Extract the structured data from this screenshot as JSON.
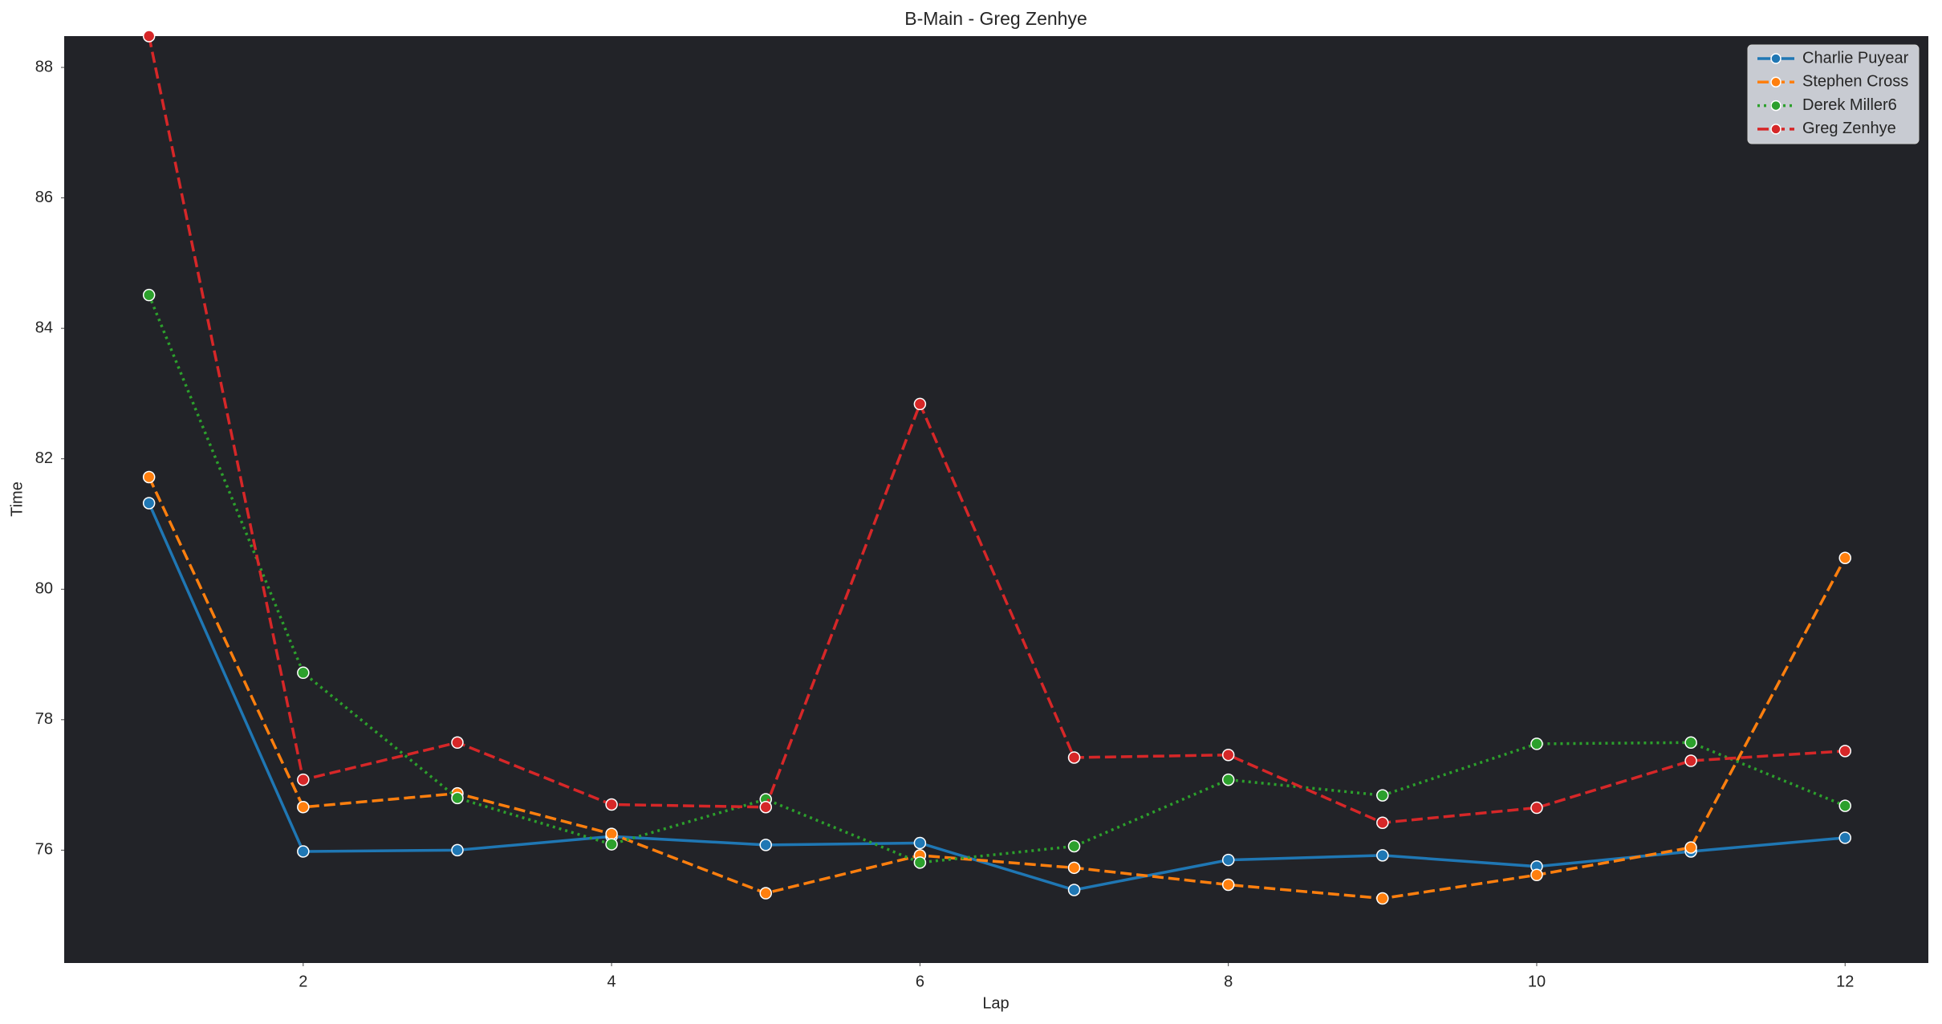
{
  "chart_data": {
    "type": "line",
    "title": "B-Main - Greg Zenhye",
    "x_label": "Lap",
    "y_label": "Time",
    "x": [
      1,
      2,
      3,
      4,
      5,
      6,
      7,
      8,
      9,
      10,
      11,
      12
    ],
    "series": [
      {
        "name": "Charlie Puyear",
        "color": "#1f77b4",
        "linestyle": "solid",
        "values": [
          81.32,
          75.98,
          76.0,
          76.21,
          76.08,
          76.11,
          75.39,
          75.85,
          75.92,
          75.75,
          75.98,
          76.19
        ]
      },
      {
        "name": "Stephen Cross",
        "color": "#ff7f0e",
        "linestyle": "dashed",
        "values": [
          81.72,
          76.66,
          76.87,
          76.25,
          75.34,
          75.92,
          75.73,
          75.47,
          75.26,
          75.62,
          76.04,
          80.48
        ]
      },
      {
        "name": "Derek Miller6",
        "color": "#2ca02c",
        "linestyle": "dotted",
        "values": [
          84.51,
          78.72,
          76.8,
          76.09,
          76.78,
          75.81,
          76.06,
          77.08,
          76.84,
          77.63,
          77.65,
          76.68
        ]
      },
      {
        "name": "Greg Zenhye",
        "color": "#d62728",
        "linestyle": "dashed",
        "values": [
          88.48,
          77.08,
          77.65,
          76.7,
          76.66,
          82.84,
          77.42,
          77.46,
          76.42,
          76.65,
          77.37,
          77.52
        ]
      }
    ],
    "xlim": [
      0.45,
      12.54
    ],
    "xticks": [
      2,
      4,
      6,
      8,
      10,
      12
    ],
    "ylim": [
      74.27,
      88.48
    ],
    "yticks": [
      76,
      78,
      80,
      82,
      84,
      86,
      88
    ],
    "legend": "upper right",
    "grid": false
  }
}
